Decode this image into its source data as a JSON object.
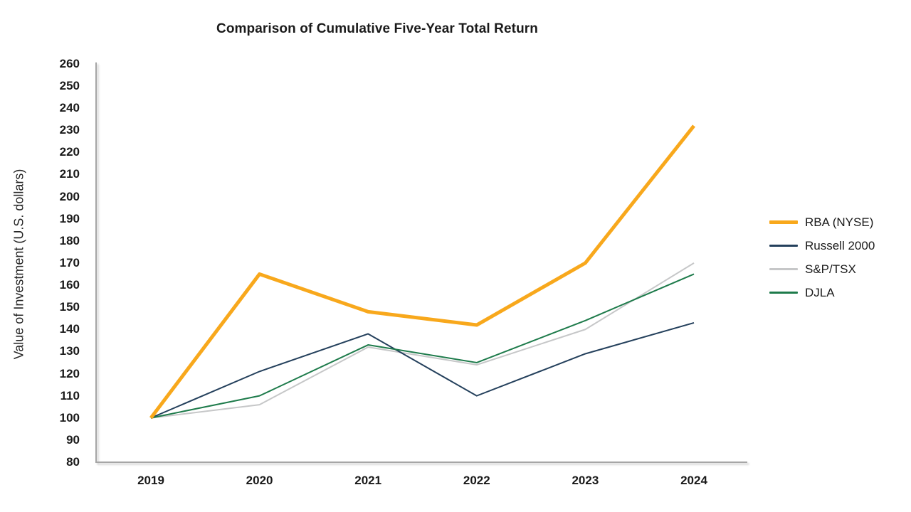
{
  "chart_data": {
    "type": "line",
    "title": "Comparison of Cumulative Five-Year Total Return",
    "ylabel": "Value of Investment (U.S. dollars)",
    "xlabel": "",
    "categories": [
      "2019",
      "2020",
      "2021",
      "2022",
      "2023",
      "2024"
    ],
    "ylim": [
      80,
      260
    ],
    "ytick_step": 10,
    "grid": false,
    "legend_position": "right",
    "axis_color": "#a6a6a6",
    "text_color": "#1a1a1a",
    "series": [
      {
        "name": "RBA (NYSE)",
        "color": "#F8A81C",
        "width": 5,
        "values": [
          100,
          165,
          148,
          142,
          170,
          232
        ]
      },
      {
        "name": "Russell 2000",
        "color": "#24405C",
        "width": 2,
        "values": [
          100,
          121,
          138,
          110,
          129,
          143
        ]
      },
      {
        "name": "S&P/TSX",
        "color": "#C6C7C8",
        "width": 2,
        "values": [
          100,
          106,
          132,
          124,
          140,
          170
        ]
      },
      {
        "name": "DJLA",
        "color": "#1E7B4B",
        "width": 2,
        "values": [
          100,
          110,
          133,
          125,
          144,
          165
        ]
      }
    ]
  }
}
